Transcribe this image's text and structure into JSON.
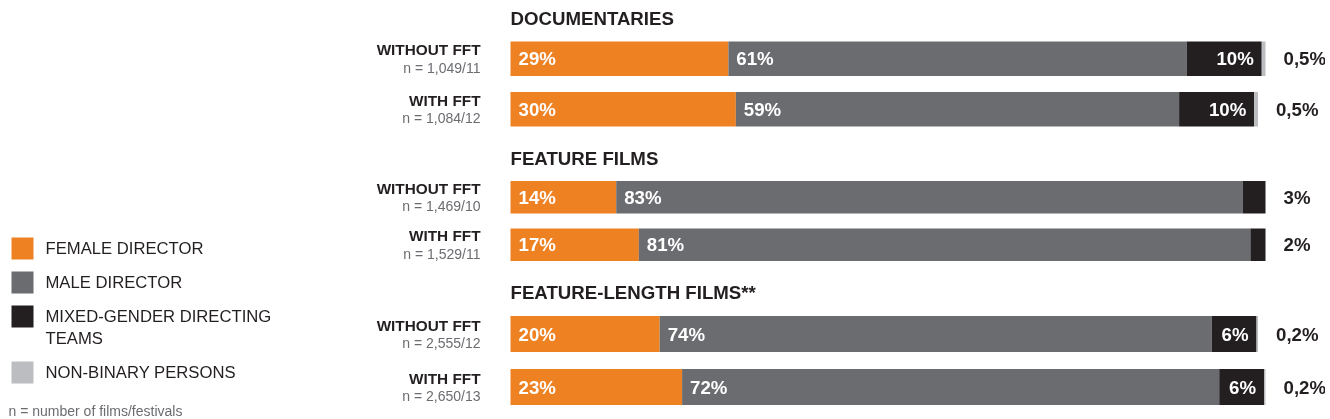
{
  "chart_data": [
    {
      "type": "bar",
      "orientation": "horizontal",
      "stacked": true,
      "title": "DOCUMENTARIES",
      "legend": "left",
      "annotations": [
        "n = number of films/festivals"
      ],
      "categories": [
        "WITHOUT FFT\nn = 1,049/11",
        "WITH FFT\nn = 1,084/12"
      ],
      "series": [
        {
          "name": "FEMALE DIRECTOR",
          "color": "#ee8122",
          "values": [
            29,
            30
          ],
          "value_labels": [
            "29%",
            "30%"
          ]
        },
        {
          "name": "MALE DIRECTOR",
          "color": "#6b6c70",
          "values": [
            61,
            59
          ],
          "value_labels": [
            "61%",
            "59%"
          ]
        },
        {
          "name": "MIXED-GENDER DIRECTING TEAMS",
          "color": "#231f20",
          "values": [
            10,
            10
          ],
          "value_labels": [
            "10%",
            "10%"
          ]
        },
        {
          "name": "NON-BINARY PERSONS",
          "color": "#bcbdc0",
          "values": [
            0.5,
            0.5
          ],
          "value_labels": [
            "0,5%",
            "0,5%"
          ]
        }
      ]
    },
    {
      "type": "bar",
      "orientation": "horizontal",
      "stacked": true,
      "title": "FEATURE FILMS",
      "categories": [
        "WITHOUT FFT\nn = 1,469/10",
        "WITH FFT\nn = 1,529/11"
      ],
      "series": [
        {
          "color": "#ee8122",
          "values": [
            14,
            17
          ],
          "value_labels": [
            "14%",
            "17%"
          ]
        },
        {
          "color": "#6b6c70",
          "values": [
            83,
            81
          ],
          "value_labels": [
            "83%",
            "81%"
          ]
        },
        {
          "color": "#231f20",
          "values": [
            3,
            2
          ],
          "value_labels": [
            "3%",
            "2%"
          ]
        }
      ]
    },
    {
      "type": "bar",
      "orientation": "horizontal",
      "stacked": true,
      "title": "FEATURE-LENGTH FILMS**",
      "categories": [
        "WITHOUT FFT\nn = 2,555/12",
        "WITH FFT\nn = 2,650/13"
      ],
      "series": [
        {
          "color": "#ee8122",
          "values": [
            20,
            23
          ],
          "value_labels": [
            "20%",
            "23%"
          ]
        },
        {
          "color": "#6b6c70",
          "values": [
            74,
            72
          ],
          "value_labels": [
            "74%",
            "72%"
          ]
        },
        {
          "color": "#231f20",
          "values": [
            6,
            6
          ],
          "value_labels": [
            "6%",
            "6%"
          ]
        },
        {
          "color": "#bcbdc0",
          "values": [
            0.2,
            0.2
          ],
          "value_labels": [
            "0,2%",
            "0,2%"
          ]
        }
      ]
    }
  ]
}
